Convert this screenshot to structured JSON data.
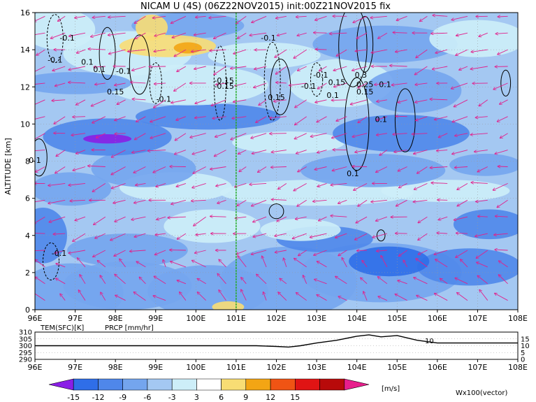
{
  "title": "NICAM U (4S) (06Z22NOV2015) init:00Z21NOV2015 fix",
  "colors": {
    "arrow": "#e0208c",
    "marker_line": "#22aa22",
    "prcp_label": "#dd0000",
    "wx_label": "#cc0099"
  },
  "chart_data": [
    {
      "type": "heatmap",
      "title": "NICAM U (4S) (06Z22NOV2015) init:00Z21NOV2015 fix",
      "ylabel": "ALTITUDE [km]",
      "xlim": [
        96,
        108
      ],
      "ylim": [
        0,
        16
      ],
      "x_ticks": [
        "96E",
        "97E",
        "98E",
        "99E",
        "100E",
        "101E",
        "102E",
        "103E",
        "104E",
        "105E",
        "106E",
        "107E",
        "108E"
      ],
      "y_ticks": [
        "0",
        "2",
        "4",
        "6",
        "8",
        "10",
        "12",
        "14",
        "16"
      ],
      "grid": true,
      "marker_line_x": 101,
      "contour_labels": [
        {
          "x": 96.5,
          "y": 13.3,
          "text": "-0.1"
        },
        {
          "x": 96.8,
          "y": 14.5,
          "text": "-0.1"
        },
        {
          "x": 97.3,
          "y": 13.2,
          "text": "0.1"
        },
        {
          "x": 97.6,
          "y": 12.8,
          "text": "0.1"
        },
        {
          "x": 98.2,
          "y": 12.7,
          "text": "-0.1"
        },
        {
          "x": 98.0,
          "y": 11.6,
          "text": "0.15"
        },
        {
          "x": 99.2,
          "y": 11.2,
          "text": "-0.1"
        },
        {
          "x": 100.7,
          "y": 11.9,
          "text": "-0.15"
        },
        {
          "x": 100.7,
          "y": 12.2,
          "text": "-0.15"
        },
        {
          "x": 101.8,
          "y": 14.5,
          "text": "-0.1"
        },
        {
          "x": 102.0,
          "y": 11.3,
          "text": "0.15"
        },
        {
          "x": 102.8,
          "y": 11.9,
          "text": "-0.1"
        },
        {
          "x": 103.1,
          "y": 12.5,
          "text": "-0.1"
        },
        {
          "x": 103.5,
          "y": 12.1,
          "text": "0.15"
        },
        {
          "x": 103.4,
          "y": 11.4,
          "text": "0.1"
        },
        {
          "x": 104.1,
          "y": 12.5,
          "text": "0.3"
        },
        {
          "x": 104.2,
          "y": 12.0,
          "text": "0.25"
        },
        {
          "x": 104.7,
          "y": 12.0,
          "text": "0.1"
        },
        {
          "x": 104.2,
          "y": 11.6,
          "text": "0.15"
        },
        {
          "x": 104.6,
          "y": 10.1,
          "text": "0.1"
        },
        {
          "x": 103.9,
          "y": 7.2,
          "text": "0.1"
        },
        {
          "x": 96.0,
          "y": 7.9,
          "text": "0.1"
        },
        {
          "x": 96.6,
          "y": 2.9,
          "text": "-0.1"
        }
      ],
      "colorbar": {
        "label": "[m/s]",
        "levels": [
          "-15",
          "-12",
          "-9",
          "-6",
          "-3",
          "3",
          "6",
          "9",
          "12",
          "15"
        ],
        "colors": [
          "#8a1ee6",
          "#2f6ee8",
          "#4f87ea",
          "#74a5ee",
          "#a4c8f2",
          "#cdeef8",
          "#ffffff",
          "#f8dd74",
          "#f3a514",
          "#f05414",
          "#e01414",
          "#b80a0a",
          "#e81e8c"
        ]
      },
      "vector_label": "Wx100(vector)"
    },
    {
      "type": "line",
      "series": [
        {
          "name": "TEM(SFC)[K]",
          "x": [
            96,
            96.5,
            97,
            98,
            99,
            100,
            101,
            101.5,
            102,
            102.3,
            102.6,
            103,
            103.5,
            104,
            104.3,
            104.6,
            105,
            105.5,
            106,
            107,
            108
          ],
          "values": [
            300,
            300,
            300,
            300,
            300,
            300,
            300,
            300,
            299.5,
            299,
            300,
            302,
            304,
            307,
            308,
            306.5,
            307.5,
            304,
            302,
            302,
            302
          ]
        },
        {
          "name": "PRCP [mm/hr]",
          "x": [
            96,
            108
          ],
          "values": [
            0,
            0
          ]
        }
      ],
      "x_ticks": [
        "96E",
        "97E",
        "98E",
        "99E",
        "100E",
        "101E",
        "102E",
        "103E",
        "104E",
        "105E",
        "106E",
        "107E",
        "108E"
      ],
      "y_left_ticks": [
        "290",
        "295",
        "300",
        "305",
        "310"
      ],
      "y_right_ticks": [
        "0",
        "5",
        "10",
        "15"
      ],
      "ylim": [
        290,
        310
      ],
      "annotation": "10"
    }
  ]
}
